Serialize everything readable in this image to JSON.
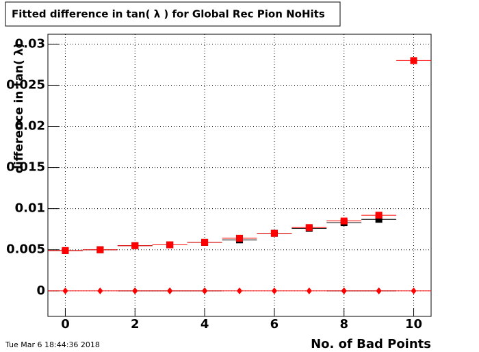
{
  "chart_data": {
    "type": "scatter",
    "title": "Fitted difference in tan( λ ) for Global Rec Pion NoHits",
    "x_label": "No. of Bad Points",
    "y_label": "difference in tan( λ)",
    "timestamp": "Tue Mar  6 18:44:36 2018",
    "x": [
      0,
      1,
      2,
      3,
      4,
      5,
      6,
      7,
      8,
      9,
      10
    ],
    "series": [
      {
        "name": "black-squares",
        "color": "#000000",
        "marker": "square",
        "values": [
          0.0049,
          0.005,
          0.0055,
          0.0056,
          0.0059,
          0.0062,
          0.007,
          0.0076,
          0.0083,
          0.0087,
          null
        ]
      },
      {
        "name": "red-squares",
        "color": "#ff0000",
        "marker": "square",
        "values": [
          0.0049,
          0.005,
          0.0055,
          0.0056,
          0.0059,
          0.0064,
          0.007,
          0.0077,
          0.0085,
          0.0092,
          0.028
        ]
      },
      {
        "name": "black-diamonds",
        "color": "#000000",
        "marker": "diamond",
        "values": [
          null,
          null,
          0,
          0,
          0,
          null,
          null,
          null,
          0,
          0,
          null
        ]
      },
      {
        "name": "red-diamonds",
        "color": "#ff0000",
        "marker": "diamond",
        "values": [
          0,
          0,
          0,
          0,
          0,
          0,
          0,
          0,
          0,
          0,
          0
        ]
      }
    ],
    "xlim": [
      -0.5,
      10.5
    ],
    "ylim": [
      -0.0031,
      0.0312
    ],
    "xticks": [
      0,
      2,
      4,
      6,
      8,
      10
    ],
    "yticks": [
      0,
      0.005,
      0.01,
      0.015,
      0.02,
      0.025,
      0.03
    ],
    "grid": true
  }
}
